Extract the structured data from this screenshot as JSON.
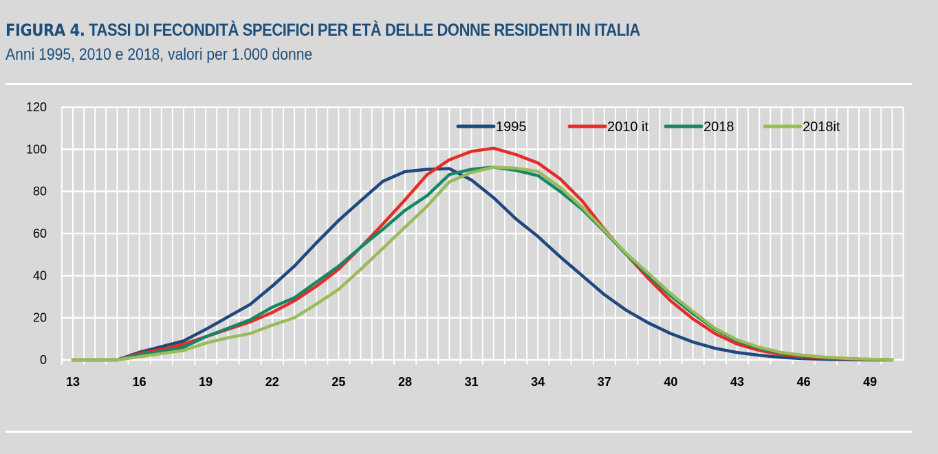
{
  "header": {
    "figure_label": "FIGURA 4.",
    "title": "TASSI DI FECONDITÀ SPECIFICI PER ETÀ DELLE DONNE RESIDENTI IN ITALIA",
    "subtitle": "Anni 1995, 2010 e 2018, valori per 1.000 donne"
  },
  "chart_data": {
    "type": "line",
    "title": "",
    "xlabel": "",
    "ylabel": "",
    "x": [
      13,
      14,
      15,
      16,
      17,
      18,
      19,
      20,
      21,
      22,
      23,
      24,
      25,
      26,
      27,
      28,
      29,
      30,
      31,
      32,
      33,
      34,
      35,
      36,
      37,
      38,
      39,
      40,
      41,
      42,
      43,
      44,
      45,
      46,
      47,
      48,
      49,
      50
    ],
    "x_tick_labels": [
      "13",
      "16",
      "19",
      "22",
      "25",
      "28",
      "31",
      "34",
      "37",
      "40",
      "43",
      "46",
      "49"
    ],
    "y_tick_labels": [
      "0",
      "20",
      "40",
      "60",
      "80",
      "100",
      "120"
    ],
    "ylim": [
      0,
      120
    ],
    "grid": true,
    "legend_position": "top-right",
    "series": [
      {
        "name": "1995",
        "color": "#1f497d",
        "values": [
          0,
          0,
          0,
          3.6,
          6.3,
          9,
          14.5,
          20.4,
          26.3,
          35,
          44.5,
          55.6,
          66.2,
          75.6,
          84.8,
          89.4,
          90.5,
          90.8,
          85.4,
          77,
          67,
          58.6,
          49,
          40,
          31,
          23.5,
          17.5,
          12.5,
          8.5,
          5.5,
          3.5,
          2.2,
          1.2,
          0.6,
          0.3,
          0.1,
          0,
          0
        ]
      },
      {
        "name": "2010 it",
        "color": "#e42d27",
        "values": [
          0,
          0,
          0,
          3,
          5,
          7.5,
          11,
          14.5,
          18,
          22.5,
          28,
          35,
          43,
          53.5,
          64.5,
          76,
          88,
          95,
          99,
          100.5,
          97.5,
          93.5,
          86,
          75.5,
          62,
          50,
          38.5,
          28,
          19.5,
          12.5,
          7.5,
          4.5,
          2.5,
          1.5,
          0.8,
          0.4,
          0.2,
          0.1
        ]
      },
      {
        "name": "2018",
        "color": "#168766",
        "values": [
          0,
          0,
          0,
          2.5,
          4,
          6,
          11,
          15,
          19,
          25,
          29.5,
          37,
          44.5,
          53.5,
          62,
          71,
          78,
          88,
          90.5,
          91.5,
          90,
          87.5,
          80,
          71.5,
          61,
          50,
          40,
          30.5,
          22,
          14.5,
          9,
          5.5,
          3.2,
          2,
          1.2,
          0.6,
          0.3,
          0.1
        ]
      },
      {
        "name": "2018it",
        "color": "#9bbb59",
        "values": [
          0,
          0,
          0,
          1.5,
          3,
          4.5,
          8,
          10.5,
          12.5,
          16.5,
          20,
          26.5,
          33.5,
          43,
          53,
          63,
          73,
          84.5,
          89,
          91.5,
          91,
          89.5,
          82,
          72.5,
          61.5,
          50.5,
          41,
          31.5,
          23,
          15,
          9.5,
          6,
          3.5,
          2.2,
          1.3,
          0.7,
          0.3,
          0.1
        ]
      }
    ]
  }
}
